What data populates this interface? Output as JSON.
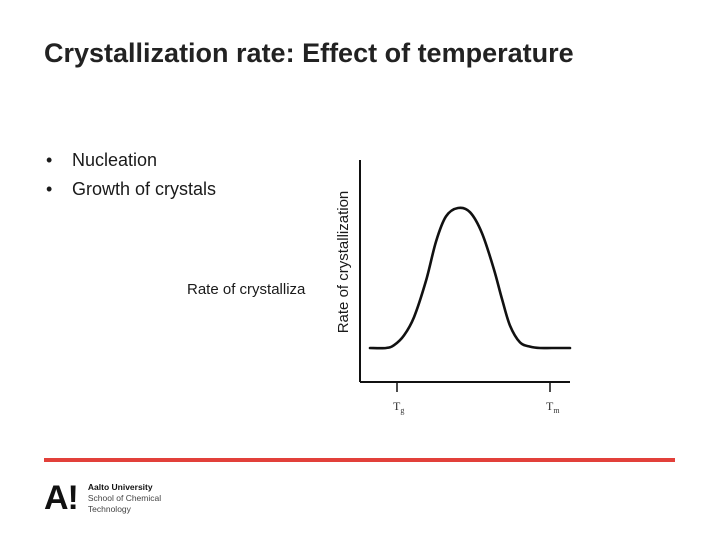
{
  "slide": {
    "title": "Crystallization rate: Effect of temperature",
    "bullets": [
      "Nucleation",
      "Growth of crystals"
    ],
    "overflow_label": "Rate of crystalliza"
  },
  "footer": {
    "logo_mark": "A!",
    "university": "Aalto University",
    "school_line1": "School of Chemical",
    "school_line2": "Technology",
    "rule_color": "#e2403a"
  },
  "chart_data": {
    "type": "line",
    "ylabel": "Rate of crystallization",
    "xlabel": "",
    "x_ticks": [
      {
        "main": "T",
        "sub": "g"
      },
      {
        "main": "T",
        "sub": "m"
      }
    ],
    "series": [
      {
        "x": [
          0.0,
          0.08,
          0.12,
          0.17,
          0.22,
          0.28,
          0.33,
          0.38,
          0.44,
          0.5,
          0.56,
          0.62,
          0.66,
          0.7,
          0.75,
          0.8,
          0.85,
          0.91,
          1.0
        ],
        "values": [
          0.0,
          0.0,
          0.02,
          0.09,
          0.22,
          0.48,
          0.76,
          0.94,
          1.0,
          0.97,
          0.82,
          0.56,
          0.35,
          0.16,
          0.04,
          0.01,
          0.0,
          0.0,
          0.0
        ]
      }
    ]
  }
}
